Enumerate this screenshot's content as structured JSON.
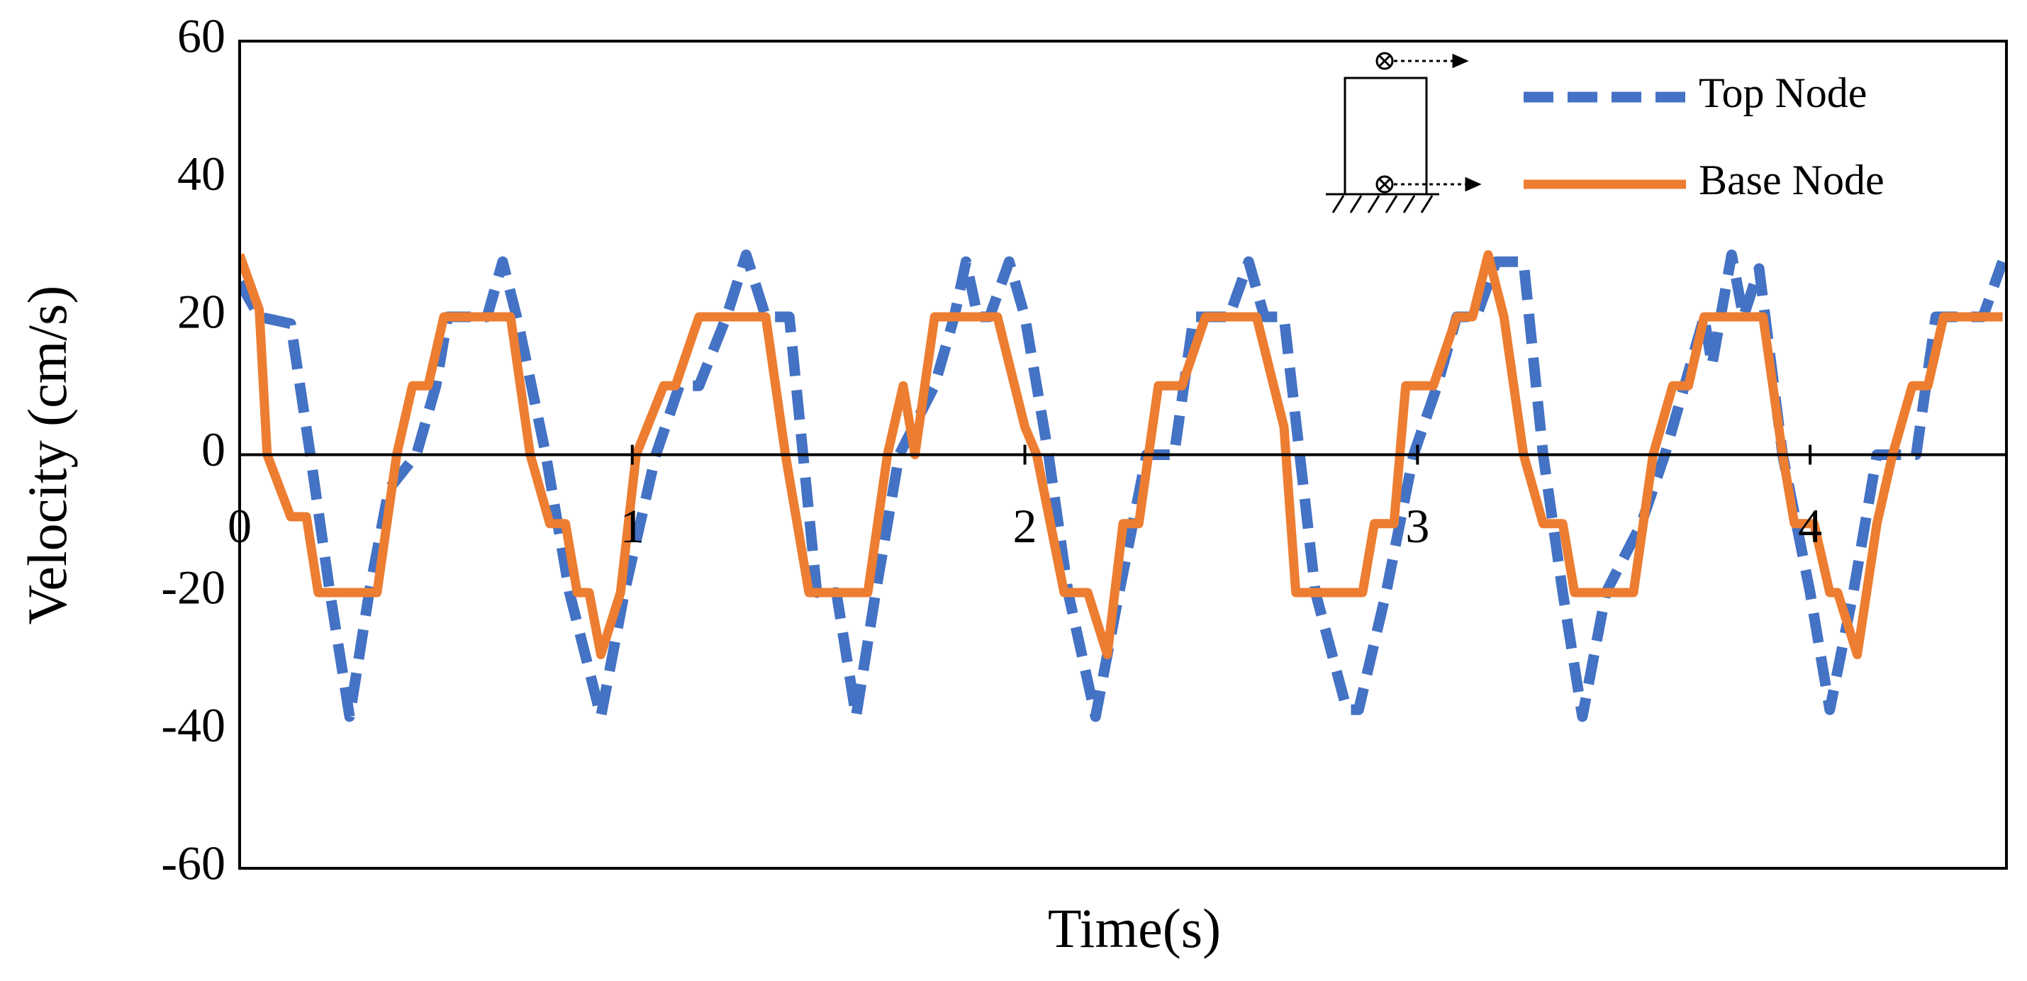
{
  "chart_data": {
    "type": "line",
    "xlabel": "Time(s)",
    "ylabel": "Velocity (cm/s)",
    "xlim": [
      0,
      4.5
    ],
    "xticks": [
      0,
      1,
      2,
      3,
      4
    ],
    "ylim": [
      -60,
      60
    ],
    "yticks": [
      -60,
      -40,
      -20,
      0,
      20,
      40,
      60
    ],
    "legend": "upper right",
    "series": [
      {
        "name": "Top Node",
        "color": "#4472c4",
        "style": "dashed",
        "x": [
          0,
          0.05,
          0.13,
          0.18,
          0.23,
          0.28,
          0.33,
          0.38,
          0.45,
          0.5,
          0.53,
          0.63,
          0.67,
          0.71,
          0.78,
          0.84,
          0.92,
          0.98,
          1.06,
          1.12,
          1.17,
          1.24,
          1.29,
          1.34,
          1.4,
          1.47,
          1.52,
          1.57,
          1.62,
          1.68,
          1.77,
          1.82,
          1.85,
          1.88,
          1.91,
          1.96,
          2.0,
          2.06,
          2.11,
          2.18,
          2.24,
          2.31,
          2.38,
          2.43,
          2.52,
          2.57,
          2.61,
          2.66,
          2.74,
          2.82,
          2.85,
          2.92,
          2.99,
          3.05,
          3.1,
          3.15,
          3.2,
          3.27,
          3.32,
          3.37,
          3.42,
          3.48,
          3.57,
          3.63,
          3.68,
          3.73,
          3.75,
          3.8,
          3.83,
          3.87,
          3.93,
          4.0,
          4.05,
          4.11,
          4.17,
          4.27,
          4.32,
          4.44,
          4.49
        ],
        "values": [
          25,
          20,
          19,
          0,
          -20,
          -38,
          -20,
          -5,
          0,
          10,
          20,
          20,
          28,
          19,
          0,
          -20,
          -38,
          -20,
          0,
          10,
          10,
          20,
          29,
          20,
          20,
          -20,
          -20,
          -38,
          -20,
          0,
          10,
          20,
          28,
          20,
          20,
          28,
          20,
          0,
          -20,
          -38,
          -20,
          0,
          0,
          20,
          20,
          28,
          20,
          20,
          -20,
          -37,
          -37,
          -20,
          0,
          10,
          20,
          20,
          28,
          28,
          0,
          -20,
          -38,
          -20,
          -10,
          0,
          10,
          20,
          13,
          29,
          20,
          27,
          0,
          -20,
          -37,
          -20,
          0,
          0,
          20,
          20,
          28
        ]
      },
      {
        "name": "Base Node",
        "color": "#ed7d31",
        "style": "solid",
        "x": [
          0,
          0.05,
          0.07,
          0.13,
          0.17,
          0.2,
          0.35,
          0.4,
          0.44,
          0.48,
          0.52,
          0.69,
          0.74,
          0.79,
          0.83,
          0.86,
          0.89,
          0.92,
          0.97,
          1.01,
          1.08,
          1.11,
          1.17,
          1.34,
          1.39,
          1.45,
          1.6,
          1.65,
          1.69,
          1.72,
          1.77,
          1.93,
          2.0,
          2.03,
          2.1,
          2.16,
          2.21,
          2.25,
          2.29,
          2.34,
          2.4,
          2.46,
          2.59,
          2.66,
          2.69,
          2.86,
          2.89,
          2.94,
          2.97,
          3.04,
          3.1,
          3.14,
          3.18,
          3.22,
          3.27,
          3.32,
          3.37,
          3.4,
          3.55,
          3.6,
          3.65,
          3.69,
          3.73,
          3.88,
          3.93,
          3.96,
          4.01,
          4.05,
          4.07,
          4.12,
          4.17,
          4.21,
          4.26,
          4.3,
          4.34,
          4.49
        ],
        "values": [
          29,
          21,
          0,
          -9,
          -9,
          -20,
          -20,
          0,
          10,
          10,
          20,
          20,
          0,
          -10,
          -10,
          -20,
          -20,
          -29,
          -20,
          0,
          10,
          10,
          20,
          20,
          0,
          -20,
          -20,
          0,
          10,
          0,
          20,
          20,
          4,
          0,
          -20,
          -20,
          -29,
          -10,
          -10,
          10,
          10,
          20,
          20,
          4,
          -20,
          -20,
          -10,
          -10,
          10,
          10,
          20,
          20,
          29,
          20,
          0,
          -10,
          -10,
          -20,
          -20,
          0,
          10,
          10,
          20,
          20,
          0,
          -10,
          -10,
          -20,
          -20,
          -29,
          -10,
          0,
          10,
          10,
          20,
          20
        ]
      }
    ]
  }
}
